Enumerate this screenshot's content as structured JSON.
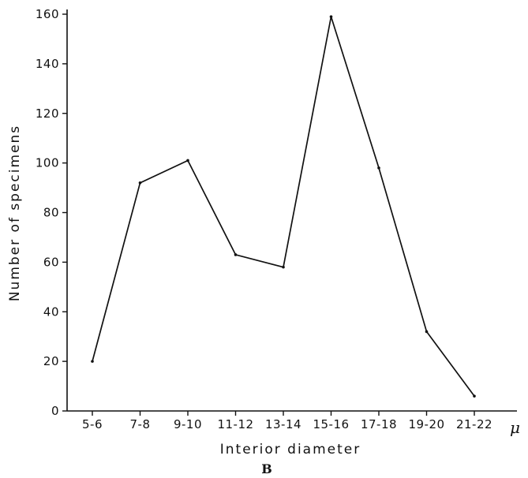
{
  "chart_data": {
    "type": "line",
    "title": "",
    "xlabel": "Interior diameter",
    "ylabel": "Number of specimens",
    "x_unit": "μ",
    "panel_label": "B",
    "categories": [
      "5-6",
      "7-8",
      "9-10",
      "11-12",
      "13-14",
      "15-16",
      "17-18",
      "19-20",
      "21-22"
    ],
    "series": [
      {
        "values": [
          20,
          92,
          101,
          63,
          58,
          159,
          98,
          32,
          6
        ]
      }
    ],
    "ylim": [
      0,
      160
    ],
    "yticks": [
      0,
      20,
      40,
      60,
      80,
      100,
      120,
      140,
      160
    ],
    "grid": false,
    "legend": "none"
  }
}
